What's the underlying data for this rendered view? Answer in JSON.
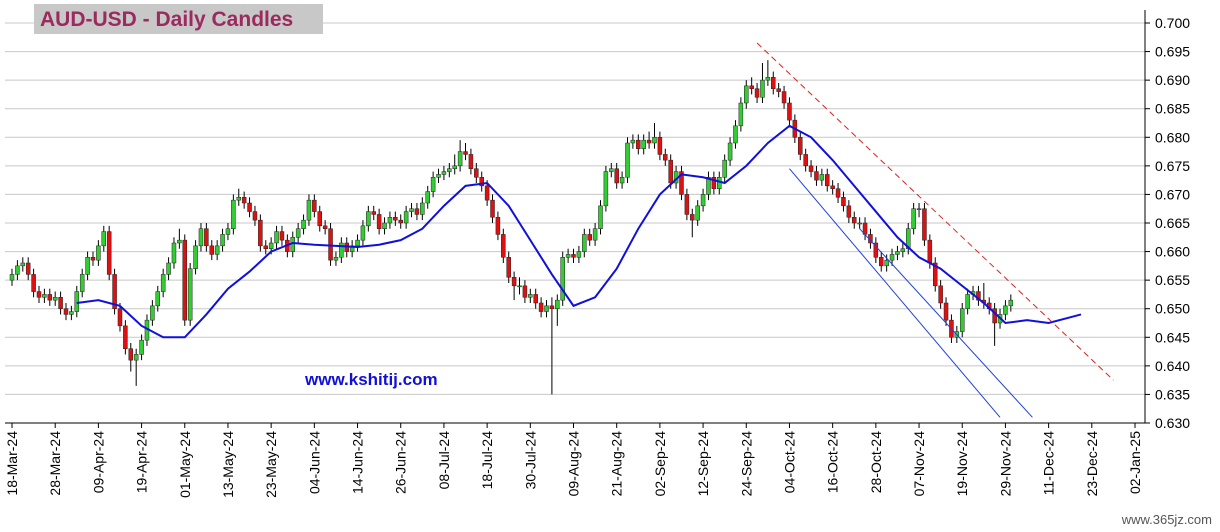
{
  "chart_data": {
    "type": "candlestick",
    "title": "AUD-USD - Daily Candles",
    "annotations": [
      "www.kshitij.com",
      "www.365jz.com"
    ],
    "xlim": [
      -1,
      210
    ],
    "xticks": [
      {
        "value": 0,
        "label": "18-Mar-24"
      },
      {
        "value": 8,
        "label": "28-Mar-24"
      },
      {
        "value": 16,
        "label": "09-Apr-24"
      },
      {
        "value": 24,
        "label": "19-Apr-24"
      },
      {
        "value": 32,
        "label": "01-May-24"
      },
      {
        "value": 40,
        "label": "13-May-24"
      },
      {
        "value": 48,
        "label": "23-May-24"
      },
      {
        "value": 56,
        "label": "04-Jun-24"
      },
      {
        "value": 64,
        "label": "14-Jun-24"
      },
      {
        "value": 72,
        "label": "26-Jun-24"
      },
      {
        "value": 80,
        "label": "08-Jul-24"
      },
      {
        "value": 88,
        "label": "18-Jul-24"
      },
      {
        "value": 96,
        "label": "30-Jul-24"
      },
      {
        "value": 104,
        "label": "09-Aug-24"
      },
      {
        "value": 112,
        "label": "21-Aug-24"
      },
      {
        "value": 120,
        "label": "02-Sep-24"
      },
      {
        "value": 128,
        "label": "12-Sep-24"
      },
      {
        "value": 136,
        "label": "24-Sep-24"
      },
      {
        "value": 144,
        "label": "04-Oct-24"
      },
      {
        "value": 152,
        "label": "16-Oct-24"
      },
      {
        "value": 160,
        "label": "28-Oct-24"
      },
      {
        "value": 168,
        "label": "07-Nov-24"
      },
      {
        "value": 176,
        "label": "19-Nov-24"
      },
      {
        "value": 184,
        "label": "29-Nov-24"
      },
      {
        "value": 192,
        "label": "11-Dec-24"
      },
      {
        "value": 200,
        "label": "23-Dec-24"
      },
      {
        "value": 208,
        "label": "02-Jan-25"
      }
    ],
    "ylim": [
      0.63,
      0.7
    ],
    "yticks": [
      {
        "value": 0.63,
        "label": "0.630"
      },
      0.635,
      {
        "value": 0.64,
        "label": "0.640"
      },
      0.645,
      {
        "value": 0.65,
        "label": "0.650"
      },
      0.655,
      {
        "value": 0.66,
        "label": "0.660"
      },
      0.665,
      {
        "value": 0.67,
        "label": "0.670"
      },
      0.675,
      {
        "value": 0.68,
        "label": "0.680"
      },
      0.685,
      {
        "value": 0.69,
        "label": "0.690"
      },
      0.695,
      {
        "value": 0.7,
        "label": "0.700"
      }
    ],
    "grid": true,
    "up_color": "#33cc33",
    "down_color": "#dd1111",
    "candles": [
      [
        0.655,
        0.657,
        0.654,
        0.656
      ],
      [
        0.656,
        0.6585,
        0.655,
        0.6575
      ],
      [
        0.6575,
        0.659,
        0.6565,
        0.658
      ],
      [
        0.658,
        0.659,
        0.655,
        0.656
      ],
      [
        0.656,
        0.657,
        0.652,
        0.653
      ],
      [
        0.653,
        0.654,
        0.651,
        0.652
      ],
      [
        0.652,
        0.6535,
        0.651,
        0.6525
      ],
      [
        0.6525,
        0.6535,
        0.6505,
        0.6515
      ],
      [
        0.6515,
        0.653,
        0.6505,
        0.652
      ],
      [
        0.652,
        0.653,
        0.649,
        0.65
      ],
      [
        0.65,
        0.651,
        0.648,
        0.649
      ],
      [
        0.649,
        0.6505,
        0.648,
        0.6495
      ],
      [
        0.6495,
        0.654,
        0.6485,
        0.653
      ],
      [
        0.653,
        0.657,
        0.652,
        0.656
      ],
      [
        0.656,
        0.66,
        0.655,
        0.659
      ],
      [
        0.659,
        0.66,
        0.6575,
        0.6585
      ],
      [
        0.6585,
        0.662,
        0.6575,
        0.661
      ],
      [
        0.661,
        0.6645,
        0.66,
        0.6635
      ],
      [
        0.6635,
        0.6645,
        0.655,
        0.656
      ],
      [
        0.656,
        0.657,
        0.649,
        0.65
      ],
      [
        0.65,
        0.651,
        0.646,
        0.647
      ],
      [
        0.647,
        0.648,
        0.642,
        0.643
      ],
      [
        0.643,
        0.644,
        0.639,
        0.641
      ],
      [
        0.641,
        0.643,
        0.6365,
        0.642
      ],
      [
        0.642,
        0.6455,
        0.641,
        0.6445
      ],
      [
        0.6445,
        0.649,
        0.6435,
        0.648
      ],
      [
        0.648,
        0.6515,
        0.647,
        0.6505
      ],
      [
        0.6505,
        0.654,
        0.6495,
        0.653
      ],
      [
        0.653,
        0.657,
        0.652,
        0.656
      ],
      [
        0.656,
        0.659,
        0.655,
        0.658
      ],
      [
        0.658,
        0.6625,
        0.657,
        0.6615
      ],
      [
        0.6615,
        0.664,
        0.6605,
        0.662
      ],
      [
        0.662,
        0.663,
        0.647,
        0.648
      ],
      [
        0.648,
        0.658,
        0.647,
        0.657
      ],
      [
        0.657,
        0.662,
        0.656,
        0.661
      ],
      [
        0.661,
        0.665,
        0.66,
        0.664
      ],
      [
        0.664,
        0.665,
        0.66,
        0.661
      ],
      [
        0.661,
        0.662,
        0.6585,
        0.6595
      ],
      [
        0.6595,
        0.662,
        0.6585,
        0.661
      ],
      [
        0.661,
        0.664,
        0.66,
        0.663
      ],
      [
        0.663,
        0.665,
        0.662,
        0.664
      ],
      [
        0.664,
        0.67,
        0.663,
        0.669
      ],
      [
        0.669,
        0.671,
        0.668,
        0.6695
      ],
      [
        0.6695,
        0.6705,
        0.6675,
        0.6685
      ],
      [
        0.6685,
        0.6695,
        0.666,
        0.667
      ],
      [
        0.667,
        0.668,
        0.6645,
        0.6655
      ],
      [
        0.6655,
        0.6665,
        0.66,
        0.661
      ],
      [
        0.661,
        0.662,
        0.6595,
        0.6605
      ],
      [
        0.6605,
        0.6625,
        0.6595,
        0.6615
      ],
      [
        0.6615,
        0.6645,
        0.6605,
        0.6635
      ],
      [
        0.6635,
        0.6645,
        0.661,
        0.662
      ],
      [
        0.662,
        0.663,
        0.659,
        0.66
      ],
      [
        0.66,
        0.6635,
        0.659,
        0.6625
      ],
      [
        0.6625,
        0.665,
        0.6615,
        0.664
      ],
      [
        0.664,
        0.6665,
        0.663,
        0.6655
      ],
      [
        0.6655,
        0.67,
        0.6645,
        0.669
      ],
      [
        0.669,
        0.67,
        0.666,
        0.667
      ],
      [
        0.667,
        0.668,
        0.6635,
        0.6645
      ],
      [
        0.6645,
        0.6655,
        0.663,
        0.664
      ],
      [
        0.664,
        0.665,
        0.6575,
        0.6585
      ],
      [
        0.6585,
        0.66,
        0.6575,
        0.659
      ],
      [
        0.659,
        0.6625,
        0.658,
        0.6615
      ],
      [
        0.6615,
        0.6625,
        0.659,
        0.66
      ],
      [
        0.66,
        0.662,
        0.659,
        0.661
      ],
      [
        0.661,
        0.663,
        0.66,
        0.662
      ],
      [
        0.662,
        0.6655,
        0.661,
        0.6645
      ],
      [
        0.6645,
        0.668,
        0.6635,
        0.667
      ],
      [
        0.667,
        0.668,
        0.6655,
        0.6665
      ],
      [
        0.6665,
        0.6675,
        0.663,
        0.664
      ],
      [
        0.664,
        0.666,
        0.663,
        0.665
      ],
      [
        0.665,
        0.667,
        0.664,
        0.666
      ],
      [
        0.666,
        0.667,
        0.6645,
        0.6655
      ],
      [
        0.6655,
        0.6665,
        0.664,
        0.665
      ],
      [
        0.665,
        0.668,
        0.664,
        0.667
      ],
      [
        0.667,
        0.6685,
        0.666,
        0.6675
      ],
      [
        0.6675,
        0.6685,
        0.6655,
        0.6665
      ],
      [
        0.6665,
        0.6695,
        0.6655,
        0.6685
      ],
      [
        0.6685,
        0.6715,
        0.6675,
        0.6705
      ],
      [
        0.6705,
        0.674,
        0.6695,
        0.673
      ],
      [
        0.673,
        0.6745,
        0.672,
        0.6735
      ],
      [
        0.6735,
        0.675,
        0.6725,
        0.674
      ],
      [
        0.674,
        0.6755,
        0.673,
        0.6745
      ],
      [
        0.6745,
        0.677,
        0.6735,
        0.675
      ],
      [
        0.675,
        0.6795,
        0.674,
        0.6775
      ],
      [
        0.6775,
        0.679,
        0.676,
        0.677
      ],
      [
        0.677,
        0.678,
        0.6735,
        0.6745
      ],
      [
        0.6745,
        0.6755,
        0.672,
        0.673
      ],
      [
        0.673,
        0.674,
        0.6705,
        0.6715
      ],
      [
        0.6715,
        0.6725,
        0.668,
        0.669
      ],
      [
        0.669,
        0.67,
        0.665,
        0.666
      ],
      [
        0.666,
        0.667,
        0.662,
        0.663
      ],
      [
        0.663,
        0.664,
        0.658,
        0.659
      ],
      [
        0.659,
        0.66,
        0.6545,
        0.6555
      ],
      [
        0.6555,
        0.6565,
        0.6515,
        0.654
      ],
      [
        0.654,
        0.6555,
        0.6525,
        0.654
      ],
      [
        0.654,
        0.655,
        0.651,
        0.652
      ],
      [
        0.652,
        0.6535,
        0.651,
        0.6525
      ],
      [
        0.6525,
        0.6535,
        0.65,
        0.651
      ],
      [
        0.651,
        0.652,
        0.6485,
        0.6495
      ],
      [
        0.6495,
        0.6515,
        0.6485,
        0.6505
      ],
      [
        0.6505,
        0.652,
        0.635,
        0.65
      ],
      [
        0.65,
        0.6525,
        0.647,
        0.6515
      ],
      [
        0.6515,
        0.66,
        0.6505,
        0.659
      ],
      [
        0.659,
        0.6605,
        0.658,
        0.6595
      ],
      [
        0.6595,
        0.6605,
        0.658,
        0.659
      ],
      [
        0.659,
        0.661,
        0.658,
        0.66
      ],
      [
        0.66,
        0.664,
        0.659,
        0.663
      ],
      [
        0.663,
        0.664,
        0.661,
        0.662
      ],
      [
        0.662,
        0.665,
        0.661,
        0.664
      ],
      [
        0.664,
        0.669,
        0.663,
        0.668
      ],
      [
        0.668,
        0.675,
        0.667,
        0.674
      ],
      [
        0.674,
        0.6755,
        0.673,
        0.6745
      ],
      [
        0.6745,
        0.6755,
        0.671,
        0.672
      ],
      [
        0.672,
        0.674,
        0.671,
        0.673
      ],
      [
        0.673,
        0.68,
        0.672,
        0.679
      ],
      [
        0.679,
        0.6805,
        0.678,
        0.6795
      ],
      [
        0.6795,
        0.6805,
        0.677,
        0.678
      ],
      [
        0.678,
        0.6805,
        0.677,
        0.6795
      ],
      [
        0.6795,
        0.681,
        0.678,
        0.679
      ],
      [
        0.679,
        0.6825,
        0.678,
        0.68
      ],
      [
        0.68,
        0.681,
        0.676,
        0.677
      ],
      [
        0.677,
        0.678,
        0.675,
        0.676
      ],
      [
        0.676,
        0.677,
        0.671,
        0.672
      ],
      [
        0.672,
        0.675,
        0.671,
        0.674
      ],
      [
        0.674,
        0.675,
        0.669,
        0.67
      ],
      [
        0.67,
        0.671,
        0.6655,
        0.6665
      ],
      [
        0.6665,
        0.6675,
        0.6625,
        0.6655
      ],
      [
        0.6655,
        0.669,
        0.6645,
        0.668
      ],
      [
        0.668,
        0.671,
        0.667,
        0.67
      ],
      [
        0.67,
        0.674,
        0.669,
        0.673
      ],
      [
        0.673,
        0.674,
        0.67,
        0.671
      ],
      [
        0.671,
        0.674,
        0.67,
        0.673
      ],
      [
        0.673,
        0.677,
        0.672,
        0.676
      ],
      [
        0.676,
        0.68,
        0.675,
        0.679
      ],
      [
        0.679,
        0.683,
        0.678,
        0.682
      ],
      [
        0.682,
        0.687,
        0.681,
        0.686
      ],
      [
        0.686,
        0.69,
        0.685,
        0.689
      ],
      [
        0.689,
        0.6905,
        0.6875,
        0.6885
      ],
      [
        0.6885,
        0.6895,
        0.686,
        0.687
      ],
      [
        0.687,
        0.693,
        0.686,
        0.69
      ],
      [
        0.69,
        0.6935,
        0.689,
        0.6905
      ],
      [
        0.6905,
        0.6915,
        0.6875,
        0.6885
      ],
      [
        0.6885,
        0.6895,
        0.687,
        0.688
      ],
      [
        0.688,
        0.689,
        0.685,
        0.686
      ],
      [
        0.686,
        0.687,
        0.682,
        0.683
      ],
      [
        0.683,
        0.684,
        0.679,
        0.68
      ],
      [
        0.68,
        0.681,
        0.676,
        0.677
      ],
      [
        0.677,
        0.678,
        0.674,
        0.675
      ],
      [
        0.675,
        0.676,
        0.673,
        0.674
      ],
      [
        0.674,
        0.675,
        0.6715,
        0.6725
      ],
      [
        0.6725,
        0.6745,
        0.6715,
        0.6735
      ],
      [
        0.6735,
        0.6745,
        0.6705,
        0.6715
      ],
      [
        0.6715,
        0.6725,
        0.67,
        0.671
      ],
      [
        0.671,
        0.672,
        0.6685,
        0.6695
      ],
      [
        0.6695,
        0.6705,
        0.667,
        0.668
      ],
      [
        0.668,
        0.669,
        0.665,
        0.666
      ],
      [
        0.666,
        0.667,
        0.664,
        0.665
      ],
      [
        0.665,
        0.666,
        0.664,
        0.665
      ],
      [
        0.665,
        0.666,
        0.662,
        0.663
      ],
      [
        0.663,
        0.664,
        0.6605,
        0.6615
      ],
      [
        0.6615,
        0.6625,
        0.658,
        0.659
      ],
      [
        0.659,
        0.66,
        0.6565,
        0.6575
      ],
      [
        0.6575,
        0.6595,
        0.6565,
        0.6585
      ],
      [
        0.6585,
        0.6605,
        0.6575,
        0.6595
      ],
      [
        0.6595,
        0.661,
        0.6585,
        0.66
      ],
      [
        0.66,
        0.6615,
        0.659,
        0.6605
      ],
      [
        0.6605,
        0.665,
        0.6595,
        0.664
      ],
      [
        0.664,
        0.6685,
        0.663,
        0.6675
      ],
      [
        0.6675,
        0.6685,
        0.666,
        0.6675
      ],
      [
        0.6675,
        0.6685,
        0.661,
        0.662
      ],
      [
        0.662,
        0.663,
        0.657,
        0.658
      ],
      [
        0.658,
        0.659,
        0.653,
        0.654
      ],
      [
        0.654,
        0.655,
        0.65,
        0.651
      ],
      [
        0.651,
        0.652,
        0.647,
        0.648
      ],
      [
        0.648,
        0.649,
        0.644,
        0.645
      ],
      [
        0.645,
        0.647,
        0.644,
        0.646
      ],
      [
        0.646,
        0.651,
        0.645,
        0.65
      ],
      [
        0.65,
        0.6535,
        0.649,
        0.6525
      ],
      [
        0.6525,
        0.654,
        0.6515,
        0.653
      ],
      [
        0.653,
        0.654,
        0.6505,
        0.6515
      ],
      [
        0.6515,
        0.6545,
        0.65,
        0.651
      ],
      [
        0.651,
        0.652,
        0.649,
        0.65
      ],
      [
        0.65,
        0.651,
        0.6435,
        0.6475
      ],
      [
        0.6475,
        0.65,
        0.6465,
        0.649
      ],
      [
        0.649,
        0.6515,
        0.648,
        0.6505
      ],
      [
        0.6505,
        0.6525,
        0.6495,
        0.6515
      ]
    ],
    "series": [
      {
        "color": "#1010dd",
        "x": [
          12,
          16,
          20,
          24,
          28,
          32,
          36,
          40,
          44,
          48,
          52,
          56,
          60,
          64,
          68,
          72,
          76,
          80,
          84,
          88,
          92,
          96,
          100,
          104,
          108,
          112,
          116,
          120,
          124,
          128,
          132,
          136,
          140,
          144,
          148,
          152,
          156,
          160,
          164,
          168,
          172,
          176,
          180,
          184,
          188,
          192,
          196,
          198
        ],
        "values": [
          0.651,
          0.6515,
          0.6505,
          0.647,
          0.645,
          0.645,
          0.649,
          0.6535,
          0.6565,
          0.66,
          0.6615,
          0.6612,
          0.661,
          0.6608,
          0.6612,
          0.662,
          0.664,
          0.668,
          0.6715,
          0.672,
          0.668,
          0.662,
          0.656,
          0.6505,
          0.652,
          0.657,
          0.664,
          0.67,
          0.6735,
          0.673,
          0.672,
          0.675,
          0.679,
          0.682,
          0.68,
          0.676,
          0.6715,
          0.667,
          0.6625,
          0.659,
          0.657,
          0.654,
          0.651,
          0.6475,
          0.648,
          0.6475,
          0.6485,
          0.649
        ]
      }
    ],
    "trend_lines": [
      {
        "color": "#e02020",
        "dashed": true,
        "x": [
          138,
          204
        ],
        "values": [
          0.6965,
          0.6375
        ]
      },
      {
        "color": "#2040e0",
        "dashed": false,
        "x": [
          144,
          183
        ],
        "values": [
          0.6745,
          0.631
        ]
      },
      {
        "color": "#2040e0",
        "dashed": false,
        "x": [
          157,
          189
        ],
        "values": [
          0.664,
          0.631
        ]
      }
    ]
  }
}
